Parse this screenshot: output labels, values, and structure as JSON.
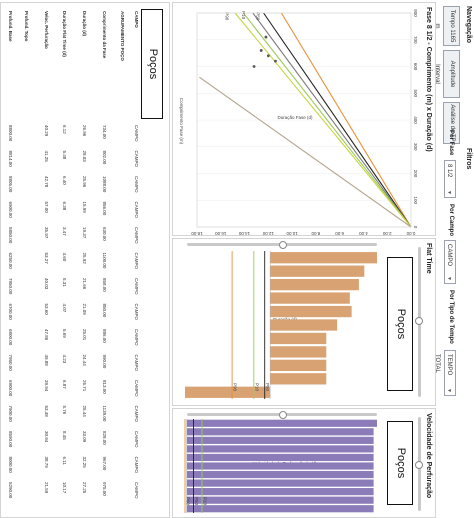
{
  "navigation": {
    "title": "Navegação",
    "buttons": [
      "Tempo 1165 m",
      "Amplitude Interval",
      "Análise de TP"
    ]
  },
  "filters": {
    "title": "Filtros",
    "items": [
      {
        "label": "Por Fase",
        "value": "8 1/2"
      },
      {
        "label": "Por Campo",
        "value": "CAMPO"
      },
      {
        "label": "Por Tipo de Tempo",
        "value": "TEMPO TOTAL"
      }
    ]
  },
  "pocos_label": "Poços",
  "chart1": {
    "title": "Fase 8 1/2 - Comprimento (m) x Duração (d)",
    "xlabel": "Comprimento Fase (m)",
    "ylabel": "Duração Fase (d)",
    "x_ticks": [
      "800",
      "700",
      "600",
      "500",
      "400",
      "300",
      "200",
      "100",
      "0"
    ],
    "y_ticks": [
      "0.00",
      "2.00",
      "4.00",
      "6.00",
      "8.00",
      "10.00",
      "12.00",
      "14.00",
      "16.00",
      "18.00"
    ],
    "labels": [
      "P50",
      "P10",
      "P90"
    ]
  },
  "chart2": {
    "title": "Flat Time",
    "label": "Poços",
    "ylabel": "Duração (d)",
    "percentiles": [
      "P10",
      "P50",
      "P90"
    ]
  },
  "chart3": {
    "title": "Velocidade de Perfuração",
    "label": "Poços",
    "ylabel": "Velocidade de Perfuração (m/d)",
    "percentiles": [
      "P10",
      "P50",
      "P90"
    ]
  },
  "table": {
    "headers": [
      "CAMPO",
      "AGRUPAMENTO POÇO",
      "Comprimento da Fase",
      "Duração (d)",
      "Duração Flat Time (d)",
      "Veloc. Perfuração",
      "Profund. Topo",
      "Profund. Base"
    ],
    "rows": [
      [
        "CAMPO",
        "",
        "734.00",
        "26.96",
        "6.12",
        "40.29",
        "",
        "8800.00"
      ],
      [
        "CAMPO",
        "",
        "802.00",
        "28.03",
        "5.48",
        "41.25",
        "",
        "8814.00"
      ],
      [
        "CAMPO",
        "",
        "1088.00",
        "25.96",
        "6.40",
        "42.78",
        "",
        "8805.00"
      ],
      [
        "CAMPO",
        "",
        "856.00",
        "15.99",
        "6.38",
        "57.00",
        "",
        "6900.00"
      ],
      [
        "CAMPO",
        "",
        "630.00",
        "19.37",
        "3.47",
        "35.97",
        "",
        "5850.00"
      ],
      [
        "CAMPO",
        "",
        "1100.00",
        "25.92",
        "4.60",
        "53.27",
        "",
        "6250.00"
      ],
      [
        "CAMPO",
        "",
        "858.00",
        "21.66",
        "5.31",
        "40.03",
        "",
        "7950.00"
      ],
      [
        "CAMPO",
        "",
        "850.00",
        "21.09",
        "4.07",
        "53.60",
        "",
        "6700.00"
      ],
      [
        "CAMPO",
        "",
        "886.00",
        "25.01",
        "5.69",
        "47.86",
        "",
        "6800.00"
      ],
      [
        "CAMPO",
        "",
        "990.00",
        "24.44",
        "4.23",
        "49.88",
        "",
        "7950.00"
      ],
      [
        "CAMPO",
        "",
        "813.00",
        "26.71",
        "6.87",
        "39.94",
        "",
        "6900.00"
      ],
      [
        "CAMPO",
        "",
        "1139.00",
        "25.44",
        "5.76",
        "53.48",
        "",
        "7900.00"
      ],
      [
        "CAMPO",
        "",
        "828.00",
        "33.09",
        "8.45",
        "30.94",
        "",
        "8590.00"
      ],
      [
        "CAMPO",
        "",
        "967.00",
        "32.25",
        "6.11",
        "38.79",
        "",
        "8000.00"
      ],
      [
        "CAMPO",
        "",
        "975.00",
        "27.25",
        "10.17",
        "21.59",
        "",
        "5290.00"
      ]
    ]
  },
  "chart_data": [
    {
      "type": "line",
      "title": "Fase 8 1/2 - Comprimento (m) x Duração (d)",
      "xlabel": "Comprimento Fase (m)",
      "ylabel": "Duração Fase (d)",
      "xlim": [
        0,
        800
      ],
      "ylim": [
        0,
        18
      ],
      "series": [
        {
          "name": "P90",
          "color": "#e8903a",
          "x": [
            0,
            800
          ],
          "y": [
            0,
            10.9
          ]
        },
        {
          "name": "P10",
          "color": "#222222",
          "x": [
            0,
            800
          ],
          "y": [
            0,
            12.4
          ]
        },
        {
          "name": "P50",
          "color": "#7a7a7a",
          "x": [
            0,
            800
          ],
          "y": [
            0,
            13.3
          ]
        },
        {
          "name": "",
          "color": "#9ccb5a",
          "x": [
            0,
            800
          ],
          "y": [
            0,
            14.1
          ]
        },
        {
          "name": "",
          "color": "#c4d640",
          "x": [
            0,
            800
          ],
          "y": [
            0,
            14.8
          ]
        },
        {
          "name": "",
          "color": "#b5a48c",
          "x": [
            0,
            560
          ],
          "y": [
            0,
            17.8
          ]
        }
      ]
    },
    {
      "type": "bar",
      "title": "Flat Time",
      "ylabel": "Duração (d)",
      "bar_color": "#d9a273",
      "values": [
        5.9,
        5.2,
        4.9,
        4.4,
        4.5,
        3.7,
        3.1,
        3.1,
        3.1,
        3.1,
        -4.7
      ],
      "reference_lines": [
        {
          "name": "P10",
          "value": -0.9,
          "color": "#9ccb5a"
        },
        {
          "name": "P50",
          "value": -0.3,
          "color": "#222222"
        },
        {
          "name": "P90",
          "value": -2.1,
          "color": "#e8903a"
        }
      ]
    },
    {
      "type": "bar",
      "title": "Velocidade de Perfuração",
      "ylabel": "Velocidade de Perfuração (m/d)",
      "bar_color": "#8b7bb8",
      "values": [
        56,
        55,
        55,
        55,
        55,
        55,
        55,
        55,
        55,
        55,
        55
      ],
      "reference_lines": [
        {
          "name": "P10",
          "value": 4.5,
          "color": "#9ccb5a"
        },
        {
          "name": "P50",
          "value": 2.0,
          "color": "#222222"
        },
        {
          "name": "P90",
          "value": -0.5,
          "color": "#e8903a"
        }
      ]
    }
  ]
}
